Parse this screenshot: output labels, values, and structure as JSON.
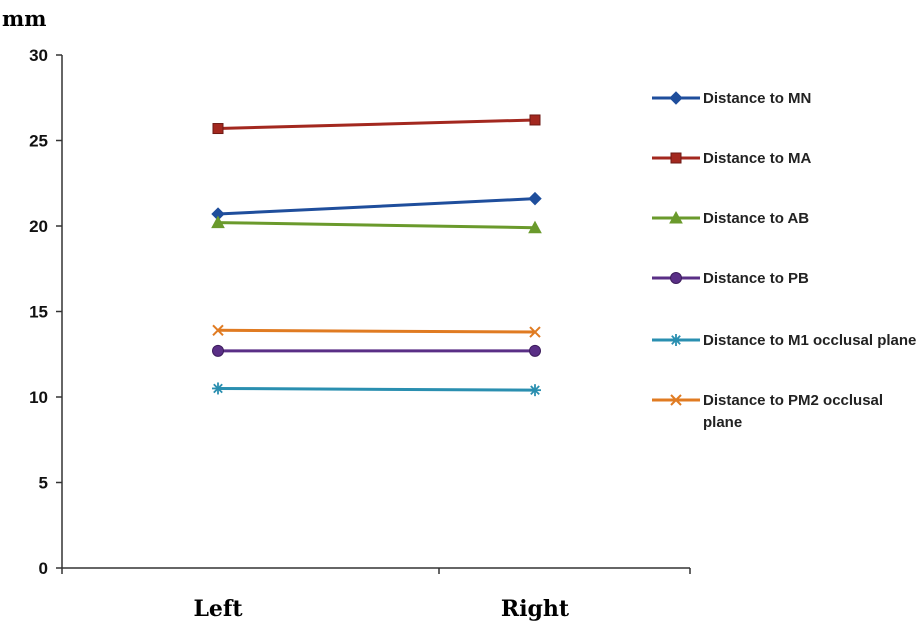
{
  "chart_data": {
    "type": "line",
    "unit_label": "mm",
    "categories": [
      "Left",
      "Right"
    ],
    "ylim": [
      0,
      30
    ],
    "yticks": [
      0,
      5,
      10,
      15,
      20,
      25,
      30
    ],
    "grid": false,
    "legend_position": "right",
    "series": [
      {
        "name": "Distance to MN",
        "values": [
          20.7,
          21.6
        ],
        "color": "#1f4e9c",
        "marker": "diamond"
      },
      {
        "name": "Distance to MA",
        "values": [
          25.7,
          26.2
        ],
        "color": "#a3281f",
        "marker": "square"
      },
      {
        "name": "Distance to AB",
        "values": [
          20.2,
          19.9
        ],
        "color": "#6a9a2c",
        "marker": "triangle"
      },
      {
        "name": "Distance to PB",
        "values": [
          12.7,
          12.7
        ],
        "color": "#5a2f86",
        "marker": "circle"
      },
      {
        "name": "Distance to M1 occlusal plane",
        "values": [
          10.5,
          10.4
        ],
        "color": "#2a8fb0",
        "marker": "asterisk"
      },
      {
        "name": "Distance to PM2 occlusal plane",
        "values": [
          13.9,
          13.8
        ],
        "color": "#e07b22",
        "marker": "x"
      }
    ]
  }
}
